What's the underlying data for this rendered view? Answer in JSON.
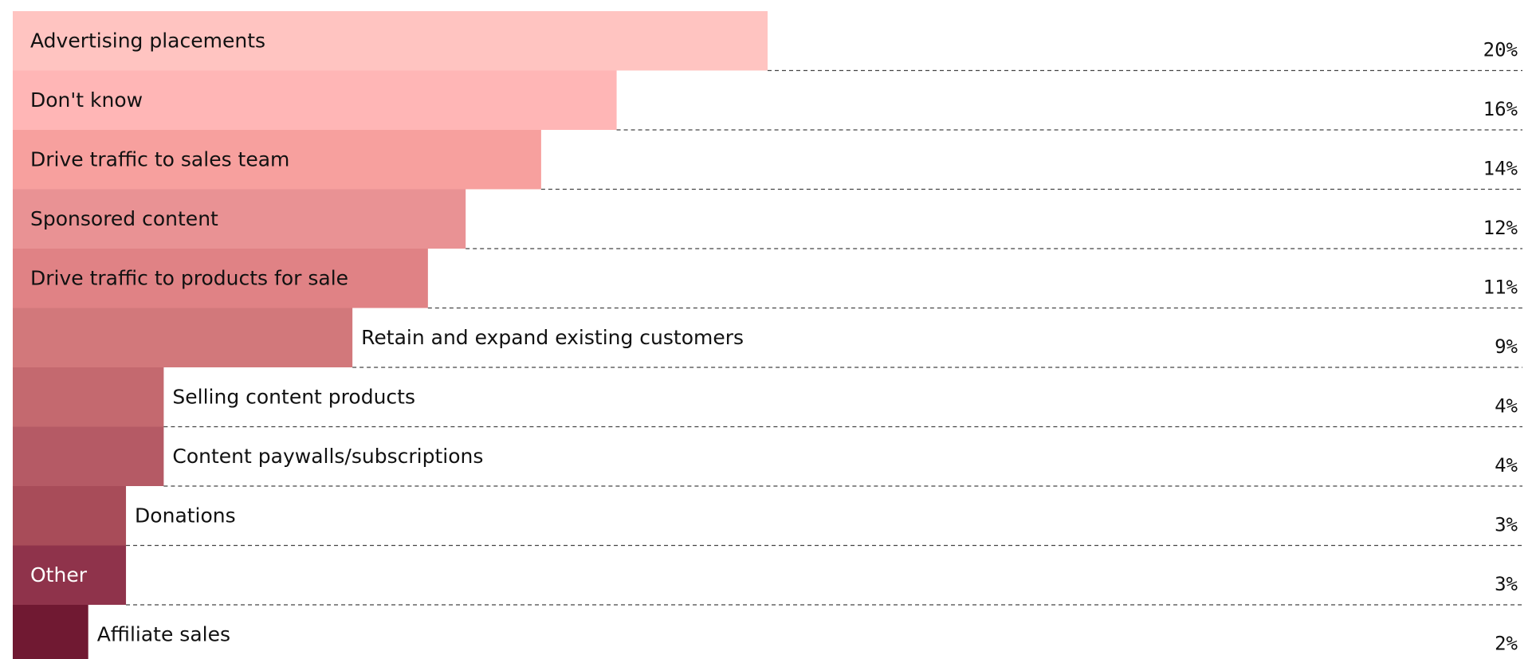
{
  "chart_data": {
    "type": "bar",
    "orientation": "horizontal",
    "categories": [
      "Advertising placements",
      "Don't know",
      "Drive traffic to sales team",
      "Sponsored content",
      "Drive traffic to products for sale",
      "Retain and expand existing customers",
      "Selling content products",
      "Content paywalls/subscriptions",
      "Donations",
      "Other",
      "Affiliate sales"
    ],
    "values": [
      20,
      16,
      14,
      12,
      11,
      9,
      4,
      4,
      3,
      3,
      2
    ],
    "value_labels": [
      "20%",
      "16%",
      "14%",
      "12%",
      "11%",
      "9%",
      "4%",
      "4%",
      "3%",
      "3%",
      "2%"
    ],
    "label_inside": [
      true,
      true,
      true,
      true,
      true,
      false,
      false,
      false,
      false,
      true,
      false
    ],
    "colors": [
      "#ffc4c1",
      "#ffb6b6",
      "#f7a09e",
      "#e99294",
      "#e08285",
      "#d2787b",
      "#c4696f",
      "#b55a65",
      "#a84c59",
      "#8f334b",
      "#701932"
    ],
    "label_colors": [
      "#111111",
      "#111111",
      "#111111",
      "#111111",
      "#111111",
      "#111111",
      "#111111",
      "#111111",
      "#111111",
      "#ffffff",
      "#111111"
    ],
    "xlim": [
      0,
      40
    ],
    "unit": "%",
    "grid": "dashed row separators",
    "legend": "none"
  }
}
